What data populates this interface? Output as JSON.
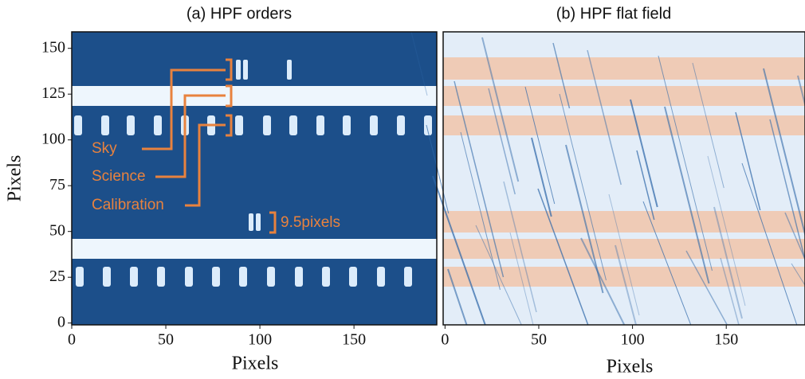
{
  "chart_data": [
    {
      "type": "image",
      "title": "(a) HPF orders",
      "x_label": "Pixels",
      "y_label": "Pixels",
      "xlim": [
        0,
        194
      ],
      "ylim": [
        -1,
        159
      ],
      "xticks": [
        0,
        50,
        100,
        150
      ],
      "yticks": [
        0,
        25,
        50,
        75,
        100,
        125,
        150
      ],
      "annotations": [
        "Sky",
        "Science",
        "Calibration",
        "9.5pixels"
      ]
    },
    {
      "type": "image",
      "title": "(b) HPF flat field",
      "x_label": "Pixels",
      "xlim": [
        -1,
        192
      ],
      "xticks": [
        0,
        50,
        100,
        150
      ]
    }
  ]
}
